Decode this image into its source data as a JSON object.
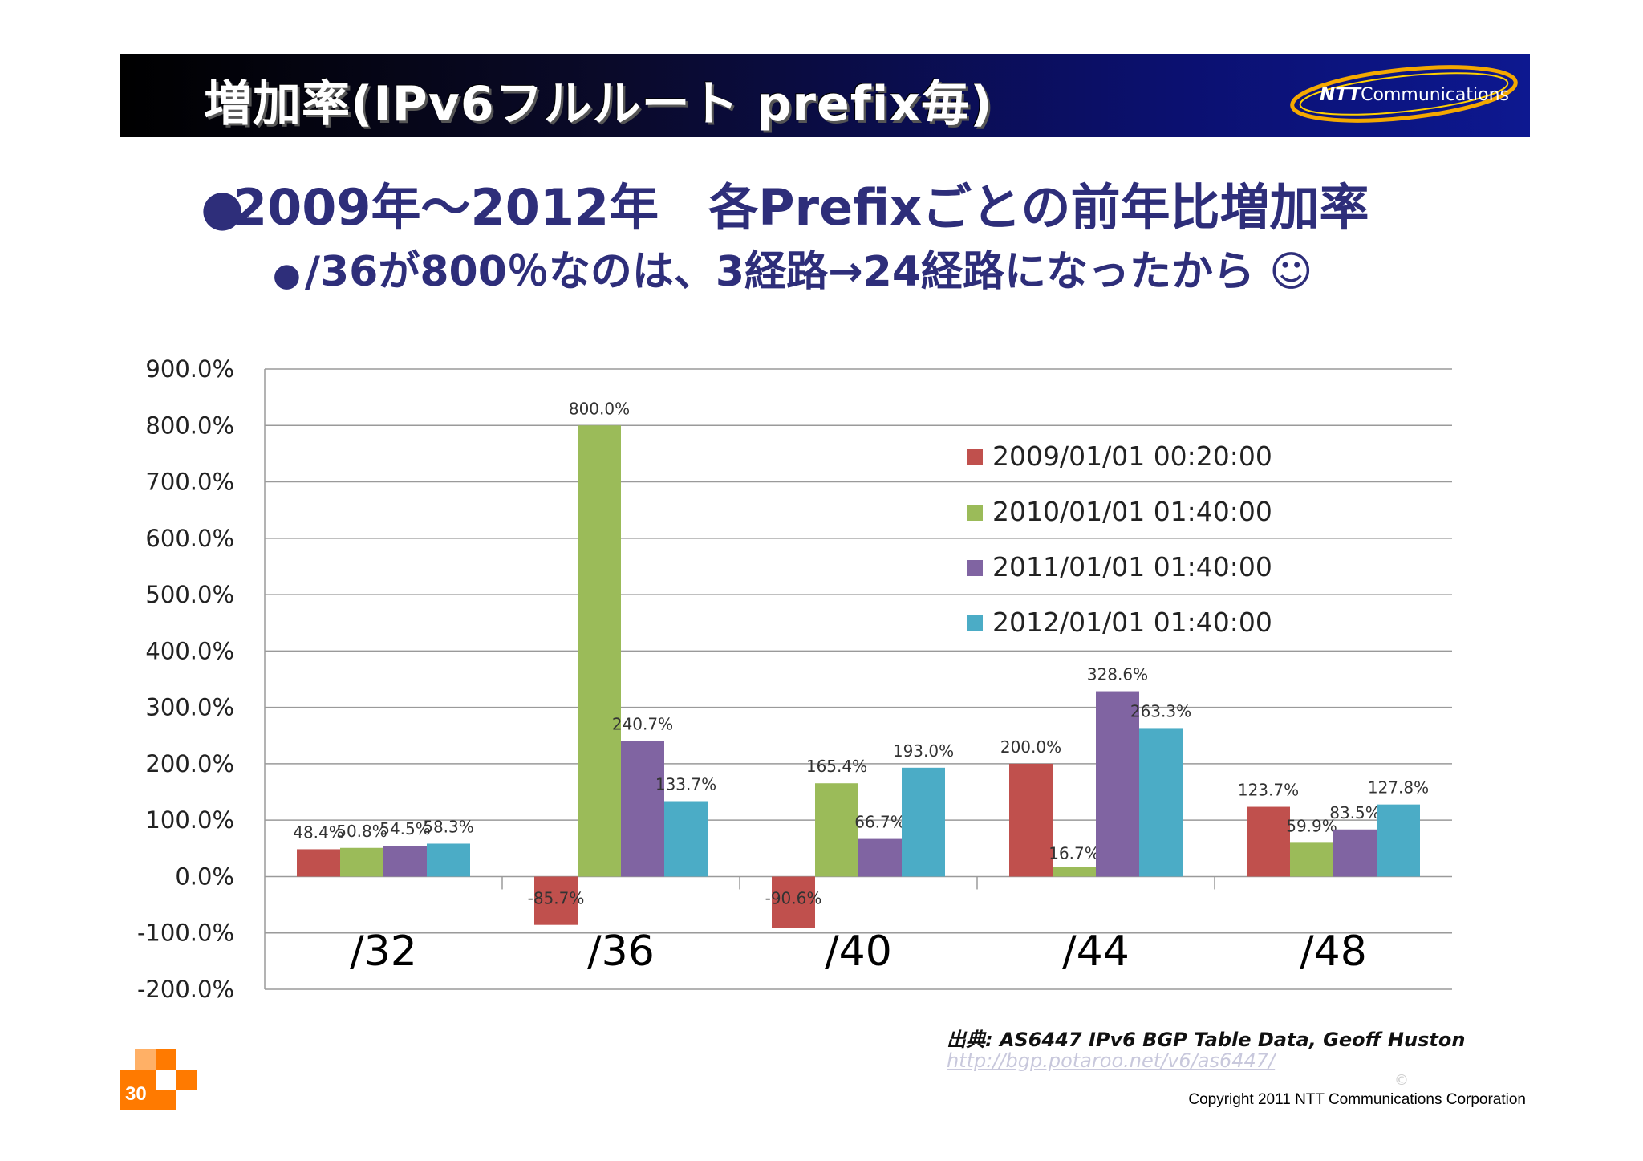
{
  "header": {
    "title": "増加率(IPv6フルルート prefix毎)",
    "logo_brand": "NTT",
    "logo_text": "Communications"
  },
  "bullets": [
    "2009年～2012年　各Prefixごとの前年比増加率",
    "/36が800％なのは、3経路→24経路になったから ☺"
  ],
  "source": {
    "label": "出典:  AS6447 IPv6 BGP Table Data, Geoff Huston",
    "url": "http://bgp.potaroo.net/v6/as6447/"
  },
  "footer": {
    "copyright_mark": "©",
    "copyright": "Copyright 2011 NTT Communications Corporation",
    "page_number": "30"
  },
  "colors": {
    "title_bar": "#0b1070",
    "bullet_text": "#2e2e7a",
    "accent_orange": "#ff7a00"
  },
  "chart_data": {
    "type": "bar",
    "categories": [
      "/32",
      "/36",
      "/40",
      "/44",
      "/48"
    ],
    "series": [
      {
        "name": "2009/01/01 00:20:00",
        "color": "#c0504d",
        "values": [
          48.4,
          -85.7,
          -90.6,
          200.0,
          123.7
        ],
        "labels": [
          "48.4%",
          "-85.7%",
          "-90.6%",
          "200.0%",
          "123.7%"
        ]
      },
      {
        "name": "2010/01/01 01:40:00",
        "color": "#9bbb59",
        "values": [
          50.8,
          800.0,
          165.4,
          16.7,
          59.9
        ],
        "labels": [
          "50.8%",
          "800.0%",
          "165.4%",
          "16.7%",
          "59.9%"
        ]
      },
      {
        "name": "2011/01/01 01:40:00",
        "color": "#8064a2",
        "values": [
          54.5,
          240.7,
          66.7,
          328.6,
          83.5
        ],
        "labels": [
          "54.5%",
          "240.7%",
          "66.7%",
          "328.6%",
          "83.5%"
        ]
      },
      {
        "name": "2012/01/01 01:40:00",
        "color": "#4bacc6",
        "values": [
          58.3,
          133.7,
          193.0,
          263.3,
          127.8
        ],
        "labels": [
          "58.3%",
          "133.7%",
          "193.0%",
          "263.3%",
          "127.8%"
        ]
      }
    ],
    "ylim": [
      -200,
      900
    ],
    "ytick_labels": [
      "-200.0%",
      "-100.0%",
      "0.0%",
      "100.0%",
      "200.0%",
      "300.0%",
      "400.0%",
      "500.0%",
      "600.0%",
      "700.0%",
      "800.0%",
      "900.0%"
    ],
    "grid": true,
    "legend_position": "top-right"
  }
}
